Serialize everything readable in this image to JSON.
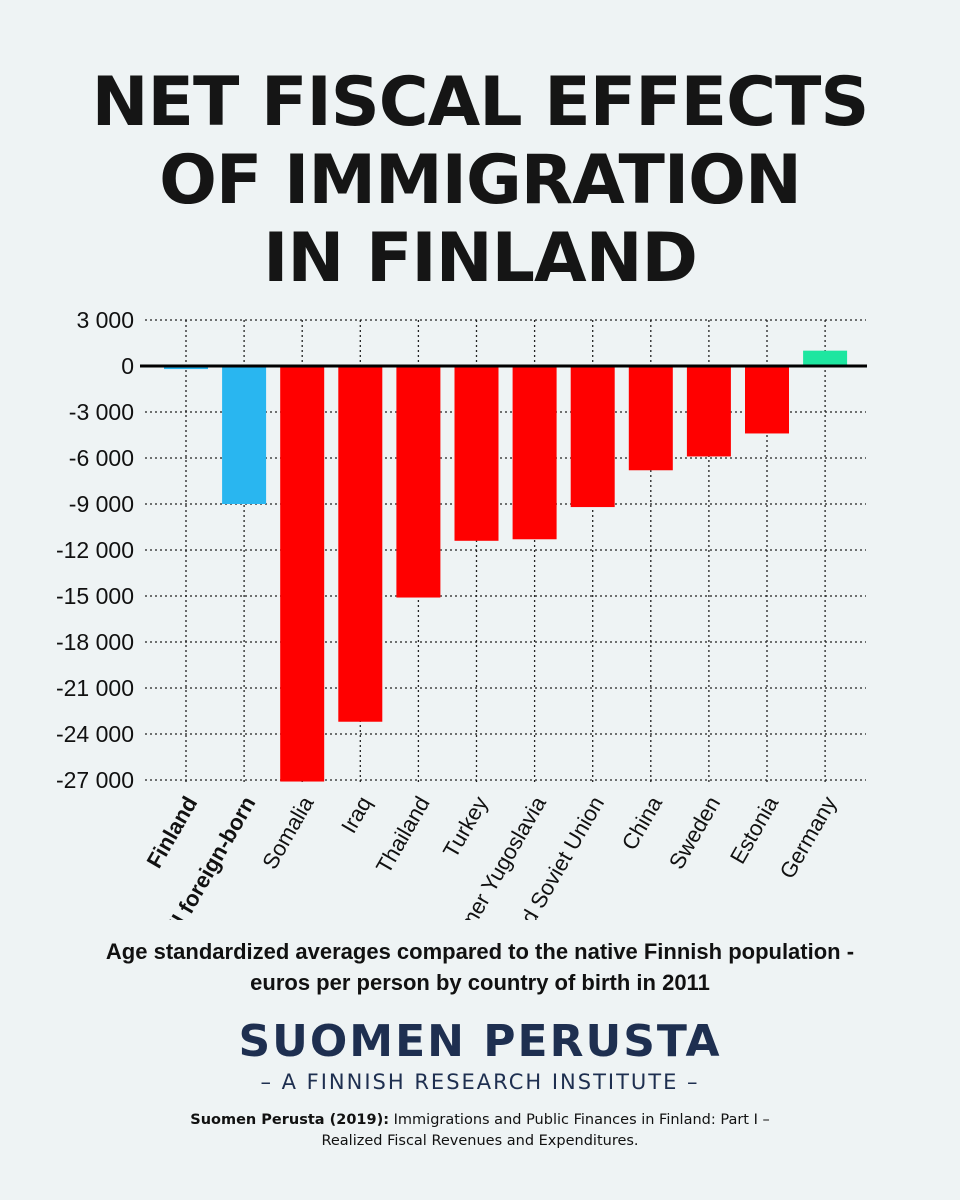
{
  "title_lines": [
    "NET FISCAL EFFECTS",
    "OF IMMIGRATION",
    "IN FINLAND"
  ],
  "chart_data": {
    "type": "bar",
    "categories": [
      "Finland",
      "All foreign-born",
      "Somalia",
      "Iraq",
      "Thailand",
      "Turkey",
      "Former Yugoslavia",
      "Formed Soviet Union",
      "China",
      "Sweden",
      "Estonia",
      "Germany"
    ],
    "values": [
      -200,
      -9000,
      -27100,
      -23200,
      -15100,
      -11400,
      -11300,
      -9200,
      -6800,
      -5900,
      -4400,
      1000
    ],
    "bar_colors": [
      "#29b6f0",
      "#29b6f0",
      "#ff0000",
      "#ff0000",
      "#ff0000",
      "#ff0000",
      "#ff0000",
      "#ff0000",
      "#ff0000",
      "#ff0000",
      "#ff0000",
      "#1ee6a0"
    ],
    "bold_categories": [
      "Finland",
      "All foreign-born"
    ],
    "y_ticks": [
      3000,
      0,
      -3000,
      -6000,
      -9000,
      -12000,
      -15000,
      -18000,
      -21000,
      -24000,
      -27000
    ],
    "y_tick_labels": [
      "3 000",
      "0",
      "-3 000",
      "-6 000",
      "-9 000",
      "-12 000",
      "-15 000",
      "-18 000",
      "-21 000",
      "-24 000",
      "-27 000"
    ],
    "ylim": [
      -27000,
      3000
    ],
    "grid": true,
    "xlabel": "",
    "ylabel": ""
  },
  "subtitle_lines": [
    "Age standardized averages compared to the native Finnish population -",
    "euros per person by country of birth in 2011"
  ],
  "brand": {
    "name": "SUOMEN PERUSTA",
    "tagline": "– A FINNISH RESEARCH INSTITUTE –"
  },
  "citation": {
    "source": "Suomen Perusta (2019):",
    "text_line1": " Immigrations and Public Finances in Finland: Part I –",
    "text_line2": "Realized Fiscal Revenues and Expenditures."
  }
}
